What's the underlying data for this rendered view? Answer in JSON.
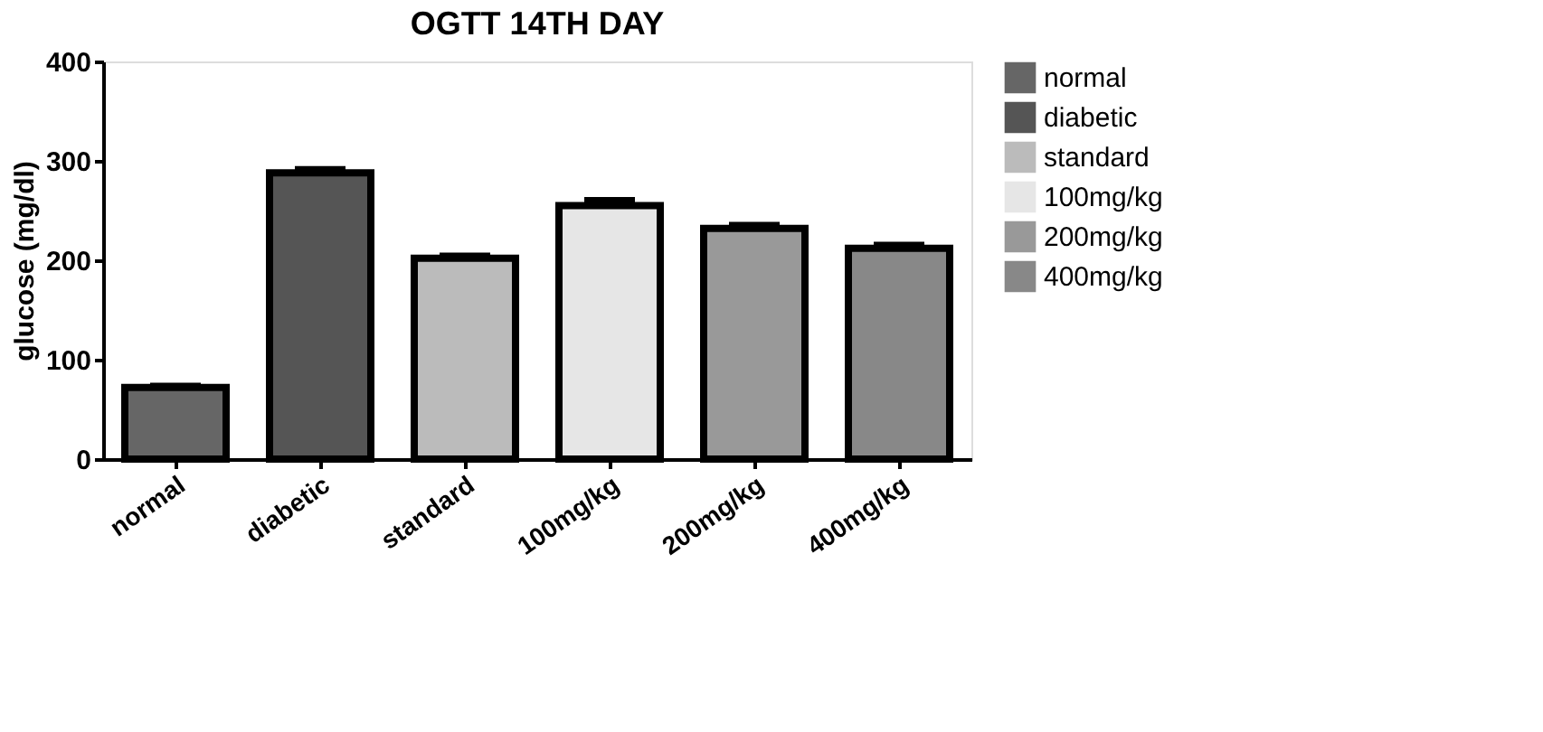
{
  "chart_data": {
    "type": "bar",
    "title": "OGTT 14TH DAY",
    "ylabel": "glucose (mg/dl)",
    "categories": [
      "normal",
      "diabetic",
      "standard",
      "100mg/kg",
      "200mg/kg",
      "400mg/kg"
    ],
    "series": [
      {
        "name": "normal",
        "color": "#666666",
        "values": [
          72,
          null,
          null,
          null,
          null,
          null
        ],
        "errors": [
          2,
          null,
          null,
          null,
          null,
          null
        ]
      },
      {
        "name": "diabetic",
        "color": "#555555",
        "values": [
          null,
          288,
          null,
          null,
          null,
          null
        ],
        "errors": [
          null,
          4,
          null,
          null,
          null,
          null
        ]
      },
      {
        "name": "standard",
        "color": "#bbbbbb",
        "values": [
          null,
          null,
          202,
          null,
          null,
          null
        ],
        "errors": [
          null,
          null,
          3,
          null,
          null,
          null
        ]
      },
      {
        "name": "100mg/kg",
        "color": "#e6e6e6",
        "values": [
          null,
          null,
          null,
          255,
          null,
          null
        ],
        "errors": [
          null,
          null,
          null,
          6,
          null,
          null
        ]
      },
      {
        "name": "200mg/kg",
        "color": "#999999",
        "values": [
          null,
          null,
          null,
          null,
          232,
          null
        ],
        "errors": [
          null,
          null,
          null,
          null,
          4,
          null
        ]
      },
      {
        "name": "400mg/kg",
        "color": "#888888",
        "values": [
          null,
          null,
          null,
          null,
          null,
          212
        ],
        "errors": [
          null,
          null,
          null,
          null,
          null,
          4
        ]
      }
    ],
    "ylim": [
      0,
      400
    ],
    "yticks": [
      0,
      100,
      200,
      300,
      400
    ],
    "grid": false,
    "legend": "right"
  }
}
